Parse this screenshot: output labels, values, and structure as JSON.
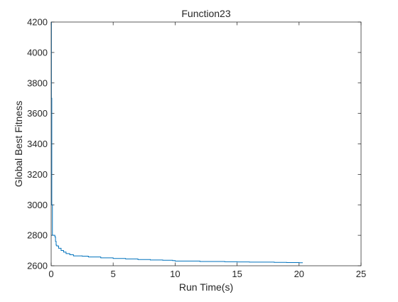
{
  "chart_data": {
    "type": "line",
    "title": "Function23",
    "xlabel": "Run Time(s)",
    "ylabel": "Global Best Fitness",
    "xlim": [
      0,
      25
    ],
    "ylim": [
      2600,
      4200
    ],
    "xticks": [
      0,
      5,
      10,
      15,
      20,
      25
    ],
    "yticks": [
      2600,
      2800,
      3000,
      3200,
      3400,
      3600,
      3800,
      4000,
      4200
    ],
    "grid": false,
    "legend": "none",
    "series": [
      {
        "color": "#0072BD",
        "x": [
          0,
          0.02,
          0.05,
          0.1,
          0.3,
          0.35,
          0.4,
          0.45,
          0.5,
          0.6,
          0.8,
          1.0,
          1.2,
          1.5,
          1.8,
          2.5,
          3.0,
          4.0,
          5.0,
          6.0,
          7.0,
          8.0,
          9.0,
          9.8,
          10.0,
          12.0,
          14.0,
          15.0,
          16.0,
          18.0,
          19.0,
          20.0,
          20.3
        ],
        "y": [
          4200,
          3700,
          3000,
          2800,
          2790,
          2760,
          2735,
          2730,
          2730,
          2715,
          2700,
          2690,
          2680,
          2672,
          2665,
          2663,
          2658,
          2652,
          2648,
          2645,
          2641,
          2638,
          2636,
          2634,
          2631,
          2628,
          2626,
          2625,
          2624,
          2622,
          2621,
          2620,
          2620
        ]
      }
    ]
  }
}
